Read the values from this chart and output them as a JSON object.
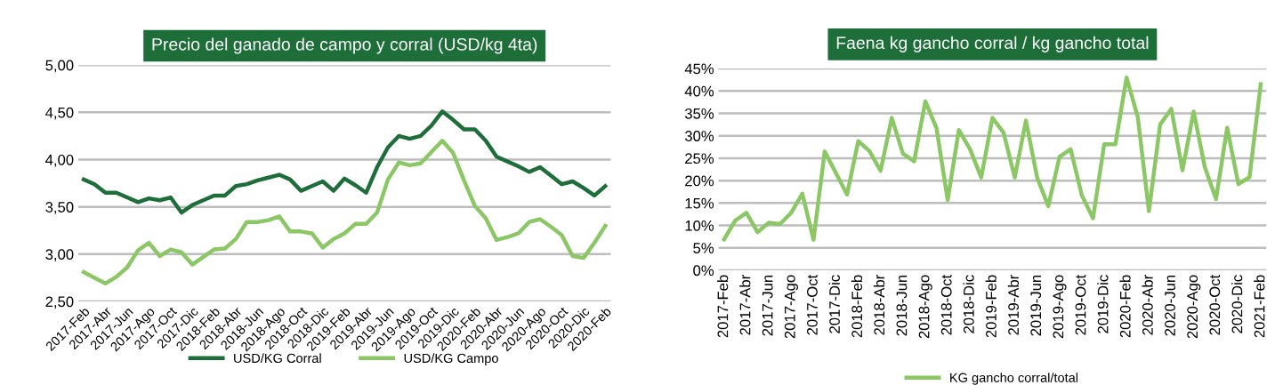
{
  "chart_data": [
    {
      "type": "line",
      "title": "Precio del ganado de campo y corral (USD/kg 4ta)",
      "categories": [
        "2017-Feb",
        null,
        "2017-Abr",
        null,
        "2017-Jun",
        null,
        "2017-Ago",
        null,
        "2017-Oct",
        null,
        "2017-Dic",
        null,
        "2018-Feb",
        null,
        "2018-Abr",
        null,
        "2018-Jun",
        null,
        "2018-Ago",
        null,
        "2018-Oct",
        null,
        "2018-Dic",
        null,
        "2019-Feb",
        null,
        "2019-Abr",
        null,
        "2019-Jun",
        null,
        "2019-Ago",
        null,
        "2019-Oct",
        null,
        "2019-Dic",
        null,
        "2020-Feb",
        null,
        "2020-Abr",
        null,
        "2020-Jun",
        null,
        "2020-Ago",
        null,
        "2020-Oct",
        null,
        "2020-Dic",
        null,
        "2020-Feb"
      ],
      "series": [
        {
          "name": "USD/KG Corral",
          "color": "#1e6e3a",
          "values": [
            3.79,
            3.74,
            3.65,
            3.65,
            3.6,
            3.55,
            3.59,
            3.57,
            3.6,
            3.44,
            3.52,
            3.57,
            3.62,
            3.62,
            3.72,
            3.74,
            3.78,
            3.81,
            3.84,
            3.79,
            3.67,
            3.72,
            3.77,
            3.67,
            3.8,
            3.73,
            3.65,
            3.92,
            4.13,
            4.25,
            4.22,
            4.25,
            4.36,
            4.51,
            4.42,
            4.32,
            4.32,
            4.2,
            4.03,
            3.98,
            3.93,
            3.87,
            3.92,
            3.83,
            3.74,
            3.77,
            3.7,
            3.62,
            3.72
          ]
        },
        {
          "name": "USD/KG Campo",
          "color": "#8cc765",
          "values": [
            2.81,
            2.75,
            2.69,
            2.76,
            2.86,
            3.04,
            3.12,
            2.98,
            3.05,
            3.02,
            2.89,
            2.97,
            3.05,
            3.06,
            3.16,
            3.34,
            3.34,
            3.36,
            3.4,
            3.24,
            3.24,
            3.22,
            3.07,
            3.16,
            3.22,
            3.32,
            3.32,
            3.44,
            3.79,
            3.97,
            3.94,
            3.96,
            4.08,
            4.2,
            4.07,
            3.78,
            3.51,
            3.38,
            3.15,
            3.18,
            3.22,
            3.34,
            3.37,
            3.29,
            3.2,
            2.98,
            2.96,
            3.12,
            3.3
          ]
        }
      ],
      "ylim": [
        2.5,
        5.0
      ],
      "yticks": [
        {
          "value": 2.5,
          "label": "2,50"
        },
        {
          "value": 3.0,
          "label": "3,00"
        },
        {
          "value": 3.5,
          "label": "3,50"
        },
        {
          "value": 4.0,
          "label": "4,00"
        },
        {
          "value": 4.5,
          "label": "4,50"
        },
        {
          "value": 5.0,
          "label": "5,00"
        }
      ],
      "grid": "y",
      "legend": "bottom",
      "line_style": "solid"
    },
    {
      "type": "line",
      "title": "Faena kg gancho corral / kg gancho total",
      "categories": [
        "2017-Feb",
        null,
        "2017-Abr",
        null,
        "2017-Jun",
        null,
        "2017-Ago",
        null,
        "2017-Oct",
        null,
        "2017-Dic",
        null,
        "2018-Feb",
        null,
        "2018-Abr",
        null,
        "2018-Jun",
        null,
        "2018-Ago",
        null,
        "2018-Oct",
        null,
        "2018-Dic",
        null,
        "2019-Feb",
        null,
        "2019-Abr",
        null,
        "2019-Jun",
        null,
        "2019-Ago",
        null,
        "2019-Oct",
        null,
        "2019-Dic",
        null,
        "2020-Feb",
        null,
        "2020-Abr",
        null,
        "2020-Jun",
        null,
        "2020-Ago",
        null,
        "2020-Oct",
        null,
        "2020-Dic",
        null,
        "2021-Feb"
      ],
      "series": [
        {
          "name": "KG gancho corral/total",
          "color": "#8cc765",
          "values": [
            6.9,
            11.1,
            12.8,
            8.5,
            10.6,
            10.3,
            12.8,
            17.1,
            6.8,
            26.5,
            21.7,
            16.9,
            28.8,
            26.6,
            22.2,
            34.0,
            26.0,
            24.3,
            37.7,
            31.7,
            15.7,
            31.3,
            27.0,
            20.7,
            34.0,
            30.7,
            20.7,
            33.4,
            20.7,
            14.3,
            25.3,
            27.0,
            16.7,
            11.6,
            28.1,
            28.1,
            43.0,
            34.2,
            13.2,
            32.5,
            36.0,
            22.3,
            35.4,
            23.0,
            15.9,
            31.8,
            19.2,
            20.8,
            41.5
          ]
        }
      ],
      "ylim": [
        0,
        45
      ],
      "yticks": [
        {
          "value": 0,
          "label": "0%"
        },
        {
          "value": 5,
          "label": "5%"
        },
        {
          "value": 10,
          "label": "10%"
        },
        {
          "value": 15,
          "label": "15%"
        },
        {
          "value": 20,
          "label": "20%"
        },
        {
          "value": 25,
          "label": "25%"
        },
        {
          "value": 30,
          "label": "30%"
        },
        {
          "value": 35,
          "label": "35%"
        },
        {
          "value": 40,
          "label": "40%"
        },
        {
          "value": 45,
          "label": "45%"
        }
      ],
      "grid": "y",
      "legend": "bottom",
      "line_style": "solid"
    }
  ]
}
